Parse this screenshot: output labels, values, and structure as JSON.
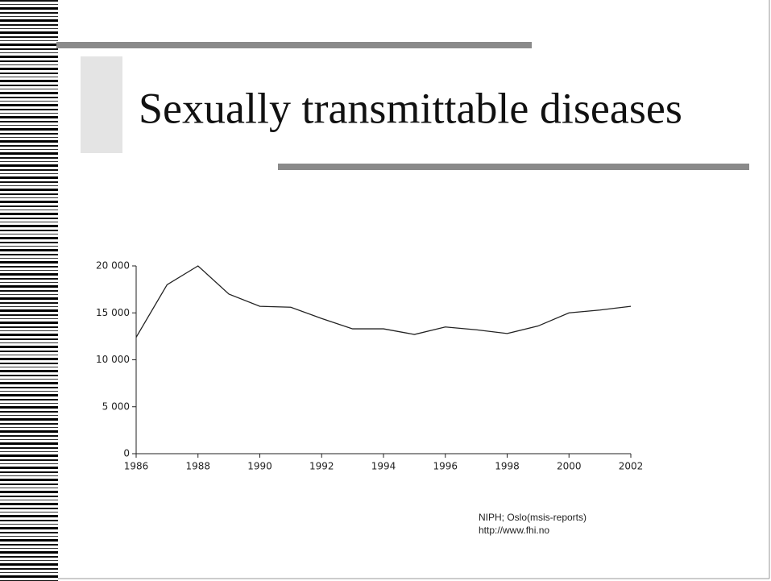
{
  "chart_data": {
    "type": "line",
    "title": "Sexually transmittable diseases",
    "x": [
      1986,
      1987,
      1988,
      1989,
      1990,
      1991,
      1992,
      1993,
      1994,
      1995,
      1996,
      1997,
      1998,
      1999,
      2000,
      2001,
      2002
    ],
    "values": [
      12400,
      18000,
      20000,
      17000,
      15700,
      15600,
      14400,
      13300,
      13300,
      12700,
      13500,
      13200,
      12800,
      13600,
      15000,
      15300,
      15700
    ],
    "color": "#222222",
    "xlim": [
      1986,
      2002
    ],
    "xticks": [
      1986,
      1988,
      1990,
      1992,
      1994,
      1996,
      1998,
      2000,
      2002
    ],
    "ylim": [
      0,
      20000
    ],
    "yticks": [
      0,
      {
        "value": 5000,
        "label": "5 000"
      },
      {
        "value": 10000,
        "label": "10 000"
      },
      {
        "value": 15000,
        "label": "15 000"
      },
      {
        "value": 20000,
        "label": "20 000"
      }
    ],
    "annotations": [
      "NIPH; Oslo(msis-reports)",
      "http://www.fhi.no"
    ]
  }
}
